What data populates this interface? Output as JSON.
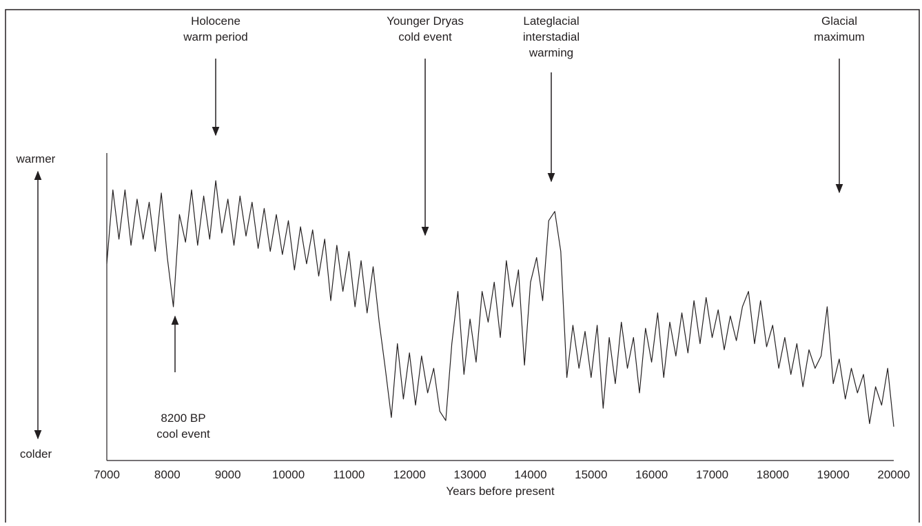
{
  "chart_data": {
    "type": "line",
    "xlabel": "Years before present",
    "y_top_label": "warmer",
    "y_bottom_label": "colder",
    "xlim": [
      7000,
      20000
    ],
    "xticks": [
      7000,
      8000,
      9000,
      10000,
      11000,
      12000,
      13000,
      14000,
      15000,
      16000,
      17000,
      18000,
      19000,
      20000
    ],
    "ylim": [
      0,
      100
    ],
    "color": "#231f20",
    "x": [
      7000,
      7100,
      7200,
      7300,
      7400,
      7500,
      7600,
      7700,
      7800,
      7900,
      8000,
      8100,
      8200,
      8300,
      8400,
      8500,
      8600,
      8700,
      8800,
      8900,
      9000,
      9100,
      9200,
      9300,
      9400,
      9500,
      9600,
      9700,
      9800,
      9900,
      10000,
      10100,
      10200,
      10300,
      10400,
      10500,
      10600,
      10700,
      10800,
      10900,
      11000,
      11100,
      11200,
      11300,
      11400,
      11500,
      11600,
      11700,
      11800,
      11900,
      12000,
      12100,
      12200,
      12300,
      12400,
      12500,
      12600,
      12700,
      12800,
      12900,
      13000,
      13100,
      13200,
      13300,
      13400,
      13500,
      13600,
      13700,
      13800,
      13900,
      14000,
      14100,
      14200,
      14300,
      14400,
      14500,
      14600,
      14700,
      14800,
      14900,
      15000,
      15100,
      15200,
      15300,
      15400,
      15500,
      15600,
      15700,
      15800,
      15900,
      16000,
      16100,
      16200,
      16300,
      16400,
      16500,
      16600,
      16700,
      16800,
      16900,
      17000,
      17100,
      17200,
      17300,
      17400,
      17500,
      17600,
      17700,
      17800,
      17900,
      18000,
      18100,
      18200,
      18300,
      18400,
      18500,
      18600,
      18700,
      18800,
      18900,
      19000,
      19100,
      19200,
      19300,
      19400,
      19500,
      19600,
      19700,
      19800,
      19900,
      20000
    ],
    "values": [
      64,
      88,
      72,
      88,
      70,
      85,
      72,
      84,
      68,
      87,
      66,
      50,
      80,
      71,
      88,
      70,
      86,
      72,
      91,
      74,
      85,
      70,
      86,
      73,
      84,
      69,
      82,
      68,
      80,
      67,
      78,
      62,
      76,
      64,
      75,
      60,
      72,
      52,
      70,
      55,
      68,
      50,
      65,
      48,
      63,
      45,
      30,
      14,
      38,
      20,
      35,
      18,
      34,
      22,
      30,
      16,
      13,
      38,
      55,
      28,
      46,
      32,
      55,
      45,
      58,
      40,
      65,
      50,
      62,
      31,
      58,
      66,
      52,
      78,
      81,
      68,
      27,
      44,
      30,
      42,
      27,
      44,
      17,
      40,
      25,
      45,
      30,
      40,
      22,
      43,
      32,
      48,
      27,
      45,
      34,
      48,
      35,
      52,
      38,
      53,
      40,
      49,
      36,
      47,
      39,
      50,
      55,
      38,
      52,
      37,
      44,
      30,
      40,
      28,
      38,
      24,
      36,
      30,
      34,
      50,
      25,
      33,
      20,
      30,
      22,
      28,
      12,
      24,
      18,
      30,
      11
    ],
    "annotations": [
      {
        "lines": [
          "Holocene",
          "warm period"
        ]
      },
      {
        "lines": [
          "Younger Dryas",
          "cold event"
        ]
      },
      {
        "lines": [
          "Lateglacial",
          "interstadial",
          "warming"
        ]
      },
      {
        "lines": [
          "Glacial",
          "maximum"
        ]
      },
      {
        "lines": [
          "8200 BP",
          "cool event"
        ]
      }
    ]
  }
}
